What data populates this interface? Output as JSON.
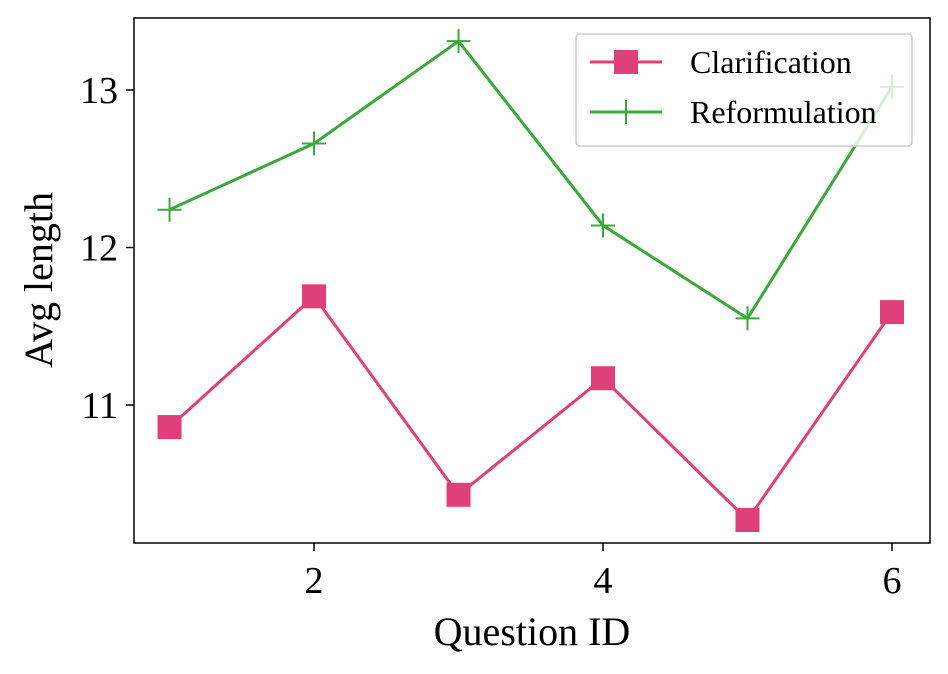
{
  "chart_data": {
    "type": "line",
    "x_label": "Question ID",
    "y_label": "Avg length",
    "x": [
      1,
      2,
      3,
      4,
      5,
      6
    ],
    "series": [
      {
        "name": "Clarification",
        "color": "#e0407a",
        "marker": "square",
        "values": [
          10.86,
          11.69,
          10.43,
          11.17,
          10.27,
          11.59
        ]
      },
      {
        "name": "Reformulation",
        "color": "#3aa83a",
        "marker": "plus",
        "values": [
          12.24,
          12.66,
          13.31,
          12.14,
          11.55,
          13.02
        ]
      }
    ],
    "xlim": [
      0.754,
      6.263
    ],
    "ylim": [
      10.124,
      13.457
    ],
    "xticks": [
      2,
      4,
      6
    ],
    "yticks": [
      11,
      12,
      13
    ],
    "legend": "upper right"
  }
}
